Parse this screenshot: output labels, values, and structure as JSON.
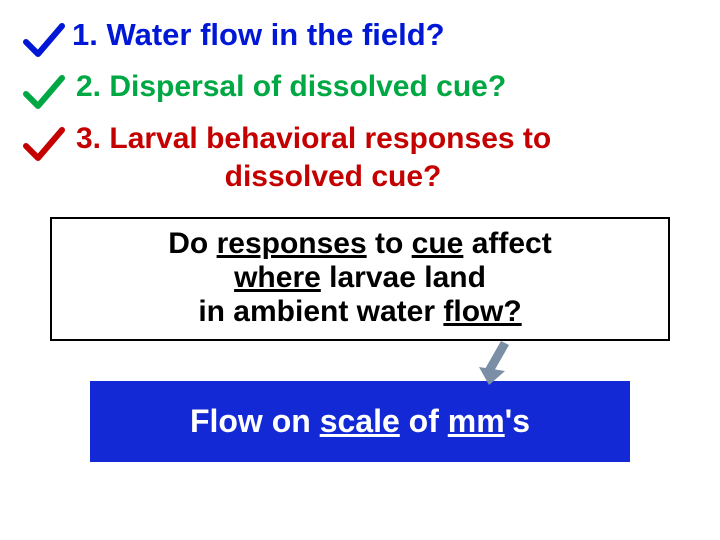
{
  "items": [
    {
      "number": "1.",
      "text": "Water flow in the field?",
      "text_color": "#0018d6",
      "check_color": "#0018d6",
      "fontsize": 31,
      "indent": 0
    },
    {
      "number": "2.",
      "text": "Dispersal of dissolved cue?",
      "text_color": "#00a844",
      "check_color": "#00a844",
      "fontsize": 30,
      "indent": 4
    },
    {
      "number": "3.",
      "text_line1": "Larval behavioral responses to",
      "text_line2": "dissolved cue?",
      "text_color": "#c40000",
      "check_color": "#c40000",
      "fontsize": 30,
      "indent": 4
    }
  ],
  "box": {
    "pre1": "Do ",
    "u_responses": "responses",
    "mid1": " to ",
    "u_cue": "cue",
    "post1": " affect",
    "u_where": "where",
    "mid2": " larvae land",
    "line3_pre": "in ambient water ",
    "u_flow": "flow?",
    "fontsize": 30,
    "text_color": "#000000",
    "border_color": "#000000",
    "background": "#ffffff"
  },
  "arrow": {
    "color": "#7a8fa6",
    "width": 46,
    "height": 46
  },
  "blue_box": {
    "pre": "Flow on ",
    "u_scale": "scale",
    "mid": " of ",
    "u_mm": "mm",
    "post": "'s",
    "fontsize": 32,
    "text_color": "#ffffff",
    "background": "#1429d6"
  }
}
